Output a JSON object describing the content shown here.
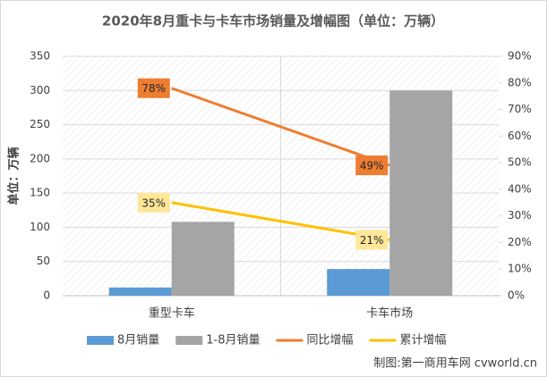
{
  "chart_data": {
    "type": "bar",
    "title": "2020年8月重卡与卡车市场销量及增幅图（单位：万辆）",
    "y_label": "单位：万辆",
    "categories": [
      "重型卡车",
      "卡车市场"
    ],
    "series": [
      {
        "name": "8月销量",
        "color": "#5B9BD5",
        "values": [
          12,
          39
        ]
      },
      {
        "name": "1-8月销量",
        "color": "#A5A5A5",
        "values": [
          108,
          300
        ]
      },
      {
        "name": "同比增幅",
        "color": "#ED7D31",
        "type": "line",
        "axis": "y2",
        "values": [
          78,
          49
        ],
        "value_labels": [
          "78%",
          "49%"
        ],
        "label_fill": "#ED7D31"
      },
      {
        "name": "累计增幅",
        "color": "#FFC000",
        "type": "line",
        "axis": "y2",
        "values": [
          35,
          21
        ],
        "value_labels": [
          "35%",
          "21%"
        ],
        "label_fill": "#FFE699"
      }
    ],
    "ylim": [
      0,
      350
    ],
    "yticks": [
      0,
      50,
      100,
      150,
      200,
      250,
      300,
      350
    ],
    "y2lim": [
      0,
      90
    ],
    "y2ticks": [
      {
        "value": 0,
        "label": "0%"
      },
      {
        "value": 10,
        "label": "10%"
      },
      {
        "value": 20,
        "label": "20%"
      },
      {
        "value": 30,
        "label": "30%"
      },
      {
        "value": 40,
        "label": "40%"
      },
      {
        "value": 50,
        "label": "50%"
      },
      {
        "value": 60,
        "label": "60%"
      },
      {
        "value": 70,
        "label": "70%"
      },
      {
        "value": 80,
        "label": "80%"
      },
      {
        "value": 90,
        "label": "90%"
      }
    ],
    "grid": true,
    "legend": "bottom",
    "source": "制图:第一商用车网 cvworld.cn"
  }
}
